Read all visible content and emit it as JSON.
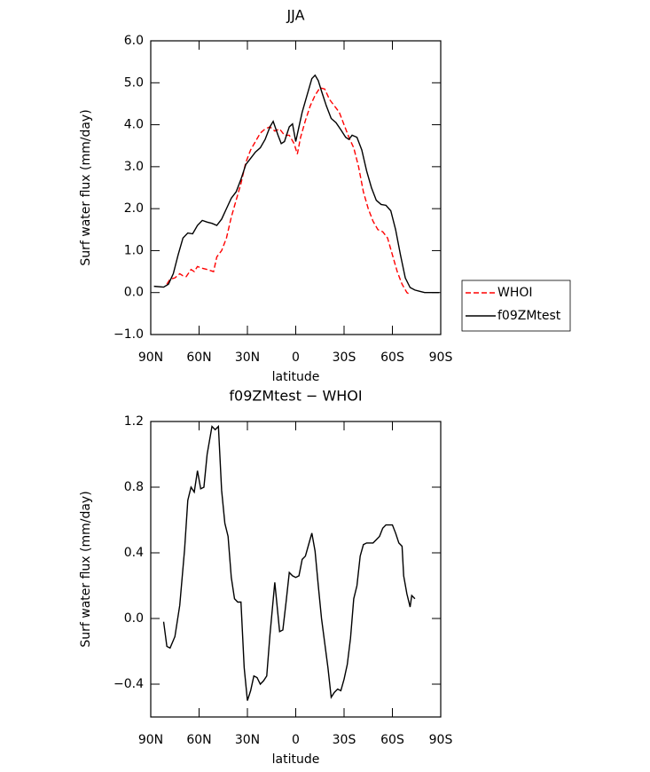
{
  "chart_data": [
    {
      "type": "line",
      "title": "JJA",
      "xlabel": "latitude",
      "ylabel": "Surf water flux (mm/day)",
      "xlim": [
        90,
        -90
      ],
      "xticks": [
        {
          "value": 90,
          "label": "90N"
        },
        {
          "value": 60,
          "label": "60N"
        },
        {
          "value": 30,
          "label": "30N"
        },
        0,
        {
          "value": -30,
          "label": "30S"
        },
        {
          "value": -60,
          "label": "60S"
        },
        {
          "value": -90,
          "label": "90S"
        }
      ],
      "ylim": [
        -1,
        6
      ],
      "yticks": [
        {
          "value": -1,
          "label": "−1.0"
        },
        {
          "value": 0,
          "label": "0.0"
        },
        {
          "value": 1,
          "label": "1.0"
        },
        {
          "value": 2,
          "label": "2.0"
        },
        {
          "value": 3,
          "label": "3.0"
        },
        {
          "value": 4,
          "label": "4.0"
        },
        {
          "value": 5,
          "label": "5.0"
        },
        {
          "value": 6,
          "label": "6.0"
        }
      ],
      "legend": "right",
      "series": [
        {
          "name": "WHOI",
          "color": "#ff0000",
          "linestyle": "dashed",
          "x": [
            80,
            78,
            75,
            72,
            70,
            68,
            65,
            63,
            61,
            58,
            55,
            51,
            49,
            46,
            43,
            40,
            37,
            34,
            31,
            28,
            25,
            22,
            19,
            16,
            13,
            10,
            7,
            4,
            1,
            -1,
            -3,
            -6,
            -9,
            -12,
            -15,
            -18,
            -21,
            -24,
            -27,
            -30,
            -33,
            -36,
            -39,
            -42,
            -45,
            -48,
            -51,
            -54,
            -57,
            -60,
            -63,
            -66,
            -69,
            -71
          ],
          "values": [
            0.2,
            0.32,
            0.35,
            0.45,
            0.4,
            0.38,
            0.55,
            0.5,
            0.62,
            0.58,
            0.55,
            0.5,
            0.85,
            1.0,
            1.3,
            1.8,
            2.2,
            2.6,
            3.1,
            3.4,
            3.6,
            3.8,
            3.9,
            3.95,
            3.85,
            3.9,
            3.75,
            3.75,
            3.55,
            3.3,
            3.7,
            4.1,
            4.45,
            4.7,
            4.88,
            4.85,
            4.6,
            4.45,
            4.3,
            4.0,
            3.7,
            3.45,
            3.0,
            2.4,
            2.0,
            1.7,
            1.5,
            1.45,
            1.3,
            0.9,
            0.5,
            0.2,
            0.0,
            -0.05
          ]
        },
        {
          "name": "f09ZMtest",
          "color": "#000000",
          "linestyle": "solid",
          "x": [
            88,
            82,
            79,
            76,
            73,
            70,
            67,
            64,
            61,
            58,
            55,
            52,
            49,
            46,
            43,
            40,
            37,
            34,
            31,
            28,
            25,
            22,
            19,
            16,
            14,
            11,
            9,
            7,
            4,
            2,
            0,
            -2,
            -4,
            -7,
            -10,
            -12,
            -14,
            -16,
            -19,
            -22,
            -25,
            -28,
            -31,
            -33,
            -35,
            -38,
            -41,
            -44,
            -47,
            -50,
            -53,
            -56,
            -59,
            -62,
            -65,
            -68,
            -71,
            -74,
            -77,
            -80,
            -83,
            -86,
            -89
          ],
          "values": [
            0.15,
            0.13,
            0.2,
            0.45,
            0.9,
            1.3,
            1.42,
            1.4,
            1.6,
            1.72,
            1.68,
            1.65,
            1.6,
            1.75,
            2.0,
            2.25,
            2.4,
            2.7,
            3.05,
            3.2,
            3.35,
            3.45,
            3.65,
            3.95,
            4.08,
            3.75,
            3.55,
            3.6,
            3.95,
            4.02,
            3.6,
            3.95,
            4.3,
            4.7,
            5.1,
            5.18,
            5.05,
            4.8,
            4.45,
            4.15,
            4.05,
            3.88,
            3.7,
            3.65,
            3.75,
            3.7,
            3.4,
            2.9,
            2.5,
            2.2,
            2.1,
            2.08,
            1.95,
            1.5,
            0.9,
            0.35,
            0.12,
            0.06,
            0.03,
            0.0,
            0.0,
            0.0,
            0.0
          ]
        }
      ]
    },
    {
      "type": "line",
      "title": "f09ZMtest − WHOI",
      "xlabel": "latitude",
      "ylabel": "Surf water flux (mm/day)",
      "xlim": [
        90,
        -90
      ],
      "xticks": [
        {
          "value": 90,
          "label": "90N"
        },
        {
          "value": 60,
          "label": "60N"
        },
        {
          "value": 30,
          "label": "30N"
        },
        0,
        {
          "value": -30,
          "label": "30S"
        },
        {
          "value": -60,
          "label": "60S"
        },
        {
          "value": -90,
          "label": "90S"
        }
      ],
      "ylim": [
        -0.6,
        1.2
      ],
      "yticks": [
        {
          "value": -0.4,
          "label": "−0.4"
        },
        {
          "value": 0,
          "label": "0.0"
        },
        0.4,
        0.8,
        1.2
      ],
      "series": [
        {
          "color": "#000000",
          "linestyle": "solid",
          "x": [
            82,
            80,
            78,
            75,
            72,
            69,
            67,
            65,
            63,
            61,
            59,
            57,
            55,
            52,
            50,
            48,
            46,
            44,
            42,
            40,
            38,
            36,
            34,
            32,
            30,
            28,
            26,
            24,
            22,
            20,
            18,
            16,
            13,
            10,
            8,
            6,
            4,
            2,
            0,
            -2,
            -4,
            -6,
            -8,
            -10,
            -12,
            -14,
            -16,
            -18,
            -20,
            -22,
            -24,
            -26,
            -28,
            -30,
            -32,
            -34,
            -36,
            -38,
            -40,
            -42,
            -44,
            -46,
            -48,
            -50,
            -52,
            -54,
            -56,
            -58,
            -60,
            -62,
            -64,
            -66,
            -67,
            -69,
            -71,
            -72,
            -74
          ],
          "values": [
            -0.02,
            -0.17,
            -0.18,
            -0.11,
            0.08,
            0.42,
            0.72,
            0.8,
            0.77,
            0.9,
            0.79,
            0.8,
            1.0,
            1.17,
            1.15,
            1.17,
            0.78,
            0.58,
            0.5,
            0.25,
            0.12,
            0.1,
            0.1,
            -0.3,
            -0.5,
            -0.44,
            -0.35,
            -0.36,
            -0.4,
            -0.38,
            -0.35,
            -0.1,
            0.22,
            -0.08,
            -0.07,
            0.1,
            0.28,
            0.26,
            0.25,
            0.26,
            0.36,
            0.38,
            0.45,
            0.52,
            0.41,
            0.2,
            0.0,
            -0.15,
            -0.3,
            -0.48,
            -0.45,
            -0.43,
            -0.44,
            -0.37,
            -0.28,
            -0.12,
            0.12,
            0.2,
            0.38,
            0.45,
            0.46,
            0.46,
            0.46,
            0.48,
            0.5,
            0.55,
            0.57,
            0.57,
            0.57,
            0.52,
            0.46,
            0.44,
            0.26,
            0.15,
            0.07,
            0.14,
            0.12
          ]
        }
      ]
    }
  ]
}
